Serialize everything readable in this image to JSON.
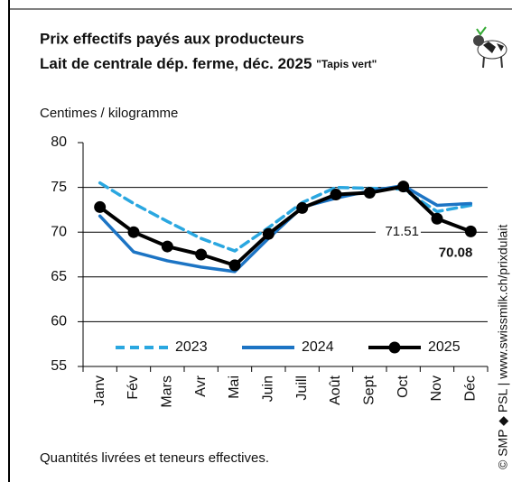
{
  "chart_data": {
    "type": "line",
    "title": "Prix effectifs payés aux producteurs",
    "subtitle": "Lait de centrale dép. ferme, déc. 2025",
    "subtitle_note": "\"Tapis vert\"",
    "y_label": "Centimes / kilogramme",
    "footnote": "Quantités livrées et teneurs effectives.",
    "source": "© SMP ◆ PSL | www.swissmilk.ch/prixdulait",
    "categories": [
      "Janv",
      "Fév",
      "Mars",
      "Avr",
      "Mai",
      "Juin",
      "Juill",
      "Août",
      "Sept",
      "Oct",
      "Nov",
      "Déc"
    ],
    "series": [
      {
        "name": "2023",
        "color": "#2aa7e0",
        "dashed": true,
        "markers": false,
        "values": [
          75.5,
          73.2,
          71.2,
          69.3,
          67.9,
          70.5,
          73.3,
          75.0,
          74.9,
          74.8,
          72.3,
          73.0
        ]
      },
      {
        "name": "2024",
        "color": "#1c74c4",
        "dashed": false,
        "markers": false,
        "values": [
          71.8,
          67.8,
          66.8,
          66.1,
          65.6,
          69.3,
          72.8,
          73.8,
          74.6,
          75.2,
          73.0,
          73.2
        ]
      },
      {
        "name": "2025",
        "color": "#000000",
        "dashed": false,
        "markers": true,
        "values": [
          72.8,
          70.0,
          68.4,
          67.5,
          66.3,
          69.8,
          72.7,
          74.2,
          74.4,
          75.1,
          71.51,
          70.08
        ],
        "value_labels": [
          null,
          null,
          null,
          null,
          null,
          null,
          null,
          null,
          null,
          null,
          "71.51",
          "70.08"
        ]
      }
    ],
    "ylim": [
      55,
      80
    ],
    "yticks": [
      55,
      60,
      65,
      70,
      75,
      80
    ],
    "grid": true
  }
}
